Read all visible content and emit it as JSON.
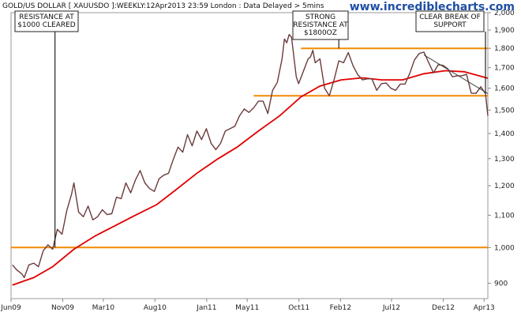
{
  "header": {
    "title": "GOLD/US DOLLAR [ XAUUSDO ]:WEEKLY:12Apr2013 23:59 London : Data Delayed > 5mins",
    "brand": "www.incrediblecharts.com"
  },
  "chart_data": {
    "type": "line",
    "y_scale": "log",
    "ylim": [
      860,
      2000
    ],
    "y_ticks": [
      {
        "value": 900,
        "label": "900"
      },
      {
        "value": 1000,
        "label": "1,000"
      },
      {
        "value": 1100,
        "label": "1,100"
      },
      {
        "value": 1200,
        "label": "1,200"
      },
      {
        "value": 1300,
        "label": "1,300"
      },
      {
        "value": 1400,
        "label": "1,400"
      },
      {
        "value": 1500,
        "label": "1,500"
      },
      {
        "value": 1600,
        "label": "1,600"
      },
      {
        "value": 1700,
        "label": "1,700"
      },
      {
        "value": 1800,
        "label": "1,800"
      },
      {
        "value": 1900,
        "label": "1,900"
      },
      {
        "value": 2000,
        "label": "2,000"
      }
    ],
    "x_ticks": [
      {
        "date": "2009-06",
        "label": "Jun09"
      },
      {
        "date": "2009-11",
        "label": "Nov09"
      },
      {
        "date": "2010-03",
        "label": "Mar10"
      },
      {
        "date": "2010-08",
        "label": "Aug10"
      },
      {
        "date": "2011-01",
        "label": "Jan11"
      },
      {
        "date": "2011-05",
        "label": "May11"
      },
      {
        "date": "2011-10",
        "label": "Oct11"
      },
      {
        "date": "2012-02",
        "label": "Feb12"
      },
      {
        "date": "2012-07",
        "label": "Jul12"
      },
      {
        "date": "2012-12",
        "label": "Dec12"
      },
      {
        "date": "2013-04",
        "label": "Apr13"
      }
    ],
    "xlim": [
      "2009-06",
      "2013-04-12"
    ],
    "colors": {
      "price": "#6b3a3a",
      "moving_average": "#e00000",
      "levels": "#f28a00",
      "annotation": "#222222",
      "trendline": "#444444"
    },
    "series": [
      {
        "kind": "price",
        "points": [
          [
            "2009-06-05",
            950
          ],
          [
            "2009-06-19",
            935
          ],
          [
            "2009-07-03",
            925
          ],
          [
            "2009-07-10",
            915
          ],
          [
            "2009-07-24",
            950
          ],
          [
            "2009-08-07",
            955
          ],
          [
            "2009-08-21",
            945
          ],
          [
            "2009-09-04",
            990
          ],
          [
            "2009-09-18",
            1008
          ],
          [
            "2009-10-02",
            995
          ],
          [
            "2009-10-16",
            1055
          ],
          [
            "2009-10-30",
            1040
          ],
          [
            "2009-11-13",
            1115
          ],
          [
            "2009-11-27",
            1170
          ],
          [
            "2009-12-04",
            1210
          ],
          [
            "2009-12-18",
            1110
          ],
          [
            "2010-01-01",
            1095
          ],
          [
            "2010-01-15",
            1130
          ],
          [
            "2010-01-29",
            1085
          ],
          [
            "2010-02-12",
            1095
          ],
          [
            "2010-02-26",
            1118
          ],
          [
            "2010-03-12",
            1102
          ],
          [
            "2010-03-26",
            1105
          ],
          [
            "2010-04-09",
            1160
          ],
          [
            "2010-04-23",
            1155
          ],
          [
            "2010-05-07",
            1210
          ],
          [
            "2010-05-21",
            1175
          ],
          [
            "2010-06-04",
            1220
          ],
          [
            "2010-06-18",
            1255
          ],
          [
            "2010-07-02",
            1210
          ],
          [
            "2010-07-16",
            1190
          ],
          [
            "2010-07-30",
            1180
          ],
          [
            "2010-08-13",
            1225
          ],
          [
            "2010-08-27",
            1238
          ],
          [
            "2010-09-10",
            1245
          ],
          [
            "2010-09-24",
            1297
          ],
          [
            "2010-10-08",
            1345
          ],
          [
            "2010-10-22",
            1325
          ],
          [
            "2010-11-05",
            1395
          ],
          [
            "2010-11-19",
            1350
          ],
          [
            "2010-12-03",
            1410
          ],
          [
            "2010-12-17",
            1375
          ],
          [
            "2010-12-31",
            1420
          ],
          [
            "2011-01-14",
            1360
          ],
          [
            "2011-01-28",
            1335
          ],
          [
            "2011-02-11",
            1360
          ],
          [
            "2011-02-25",
            1410
          ],
          [
            "2011-03-11",
            1420
          ],
          [
            "2011-03-25",
            1430
          ],
          [
            "2011-04-08",
            1475
          ],
          [
            "2011-04-22",
            1505
          ],
          [
            "2011-05-06",
            1490
          ],
          [
            "2011-05-20",
            1510
          ],
          [
            "2011-06-03",
            1540
          ],
          [
            "2011-06-17",
            1540
          ],
          [
            "2011-07-01",
            1485
          ],
          [
            "2011-07-15",
            1590
          ],
          [
            "2011-07-29",
            1628
          ],
          [
            "2011-08-12",
            1745
          ],
          [
            "2011-08-19",
            1850
          ],
          [
            "2011-08-26",
            1830
          ],
          [
            "2011-09-02",
            1875
          ],
          [
            "2011-09-09",
            1860
          ],
          [
            "2011-09-23",
            1655
          ],
          [
            "2011-09-30",
            1622
          ],
          [
            "2011-10-14",
            1682
          ],
          [
            "2011-10-28",
            1745
          ],
          [
            "2011-11-04",
            1755
          ],
          [
            "2011-11-11",
            1790
          ],
          [
            "2011-11-18",
            1725
          ],
          [
            "2011-12-02",
            1745
          ],
          [
            "2011-12-16",
            1600
          ],
          [
            "2011-12-30",
            1565
          ],
          [
            "2012-01-13",
            1640
          ],
          [
            "2012-01-27",
            1735
          ],
          [
            "2012-02-10",
            1725
          ],
          [
            "2012-02-24",
            1778
          ],
          [
            "2012-03-09",
            1710
          ],
          [
            "2012-03-23",
            1665
          ],
          [
            "2012-04-06",
            1640
          ],
          [
            "2012-04-20",
            1645
          ],
          [
            "2012-05-04",
            1645
          ],
          [
            "2012-05-18",
            1590
          ],
          [
            "2012-06-01",
            1622
          ],
          [
            "2012-06-15",
            1625
          ],
          [
            "2012-06-29",
            1600
          ],
          [
            "2012-07-13",
            1590
          ],
          [
            "2012-07-27",
            1620
          ],
          [
            "2012-08-10",
            1620
          ],
          [
            "2012-08-24",
            1672
          ],
          [
            "2012-09-07",
            1740
          ],
          [
            "2012-09-21",
            1773
          ],
          [
            "2012-10-05",
            1780
          ],
          [
            "2012-10-19",
            1725
          ],
          [
            "2012-11-02",
            1675
          ],
          [
            "2012-11-16",
            1715
          ],
          [
            "2012-11-30",
            1712
          ],
          [
            "2012-12-14",
            1695
          ],
          [
            "2012-12-28",
            1655
          ],
          [
            "2013-01-11",
            1660
          ],
          [
            "2013-01-25",
            1660
          ],
          [
            "2013-02-08",
            1667
          ],
          [
            "2013-02-22",
            1577
          ],
          [
            "2013-03-08",
            1576
          ],
          [
            "2013-03-22",
            1607
          ],
          [
            "2013-04-05",
            1575
          ],
          [
            "2013-04-12",
            1475
          ]
        ]
      },
      {
        "kind": "moving_average",
        "points": [
          [
            "2009-06-05",
            895
          ],
          [
            "2009-08-07",
            915
          ],
          [
            "2009-10-02",
            945
          ],
          [
            "2009-12-04",
            995
          ],
          [
            "2010-02-05",
            1035
          ],
          [
            "2010-04-02",
            1065
          ],
          [
            "2010-06-04",
            1100
          ],
          [
            "2010-08-06",
            1135
          ],
          [
            "2010-10-01",
            1185
          ],
          [
            "2010-12-03",
            1245
          ],
          [
            "2011-02-04",
            1300
          ],
          [
            "2011-04-01",
            1345
          ],
          [
            "2011-06-03",
            1410
          ],
          [
            "2011-08-05",
            1475
          ],
          [
            "2011-10-07",
            1560
          ],
          [
            "2011-12-02",
            1610
          ],
          [
            "2012-02-03",
            1640
          ],
          [
            "2012-04-06",
            1650
          ],
          [
            "2012-06-01",
            1640
          ],
          [
            "2012-08-03",
            1640
          ],
          [
            "2012-10-05",
            1670
          ],
          [
            "2012-12-07",
            1685
          ],
          [
            "2013-02-01",
            1680
          ],
          [
            "2013-04-12",
            1648
          ]
        ]
      }
    ],
    "horizontal_levels": [
      {
        "value": 1000,
        "from": "2009-06",
        "to": "2013-04-12"
      },
      {
        "value": 1800,
        "from": "2011-10-07",
        "to": "2013-04-12"
      },
      {
        "value": 1565,
        "from": "2011-05-20",
        "to": "2013-04-12"
      }
    ],
    "trendline": {
      "from": [
        "2012-10-05",
        1765
      ],
      "to": [
        "2013-04-12",
        1575
      ]
    },
    "annotations": [
      {
        "lines": [
          "RESISTANCE AT",
          "$1000 CLEARED"
        ],
        "points_to": [
          "2009-10-09",
          1000
        ]
      },
      {
        "lines": [
          "STRONG",
          "RESISTANCE AT",
          "$1800OZ"
        ],
        "points_to": [
          "2012-01-27",
          1800
        ]
      },
      {
        "lines": [
          "CLEAR BREAK OF",
          "SUPPORT"
        ],
        "points_to": [
          "2013-04-05",
          1575
        ]
      }
    ]
  }
}
